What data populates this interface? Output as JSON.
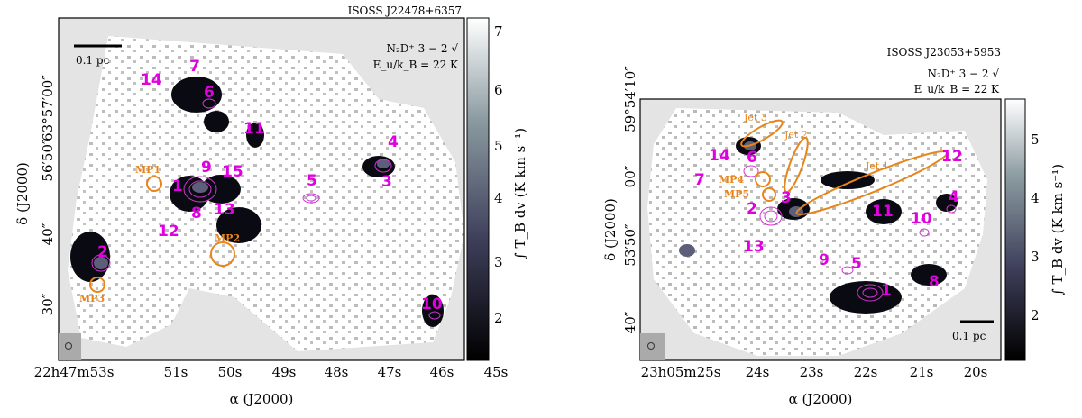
{
  "colors": {
    "map_fill": "#ffffff",
    "outside": "#e4e4e4",
    "emission_dark": "#0a0a12",
    "emission_mid": "#5d5f7a",
    "contour": "#d433d4",
    "source_label": "#e000e0",
    "mp_marker": "#e8851a"
  },
  "left": {
    "title": "ISOSS J22478+6357",
    "line_name": "N₂D⁺ 3 − 2 √",
    "energy": "E_u/k_B = 22 K",
    "scale_bar": "0.1 pc",
    "xlabel": "α (J2000)",
    "ylabel": "δ (J2000)",
    "colorbar_label": "∫ T_B dv  (K km s⁻¹)",
    "xticks": [
      "22h47m53s",
      "51s",
      "50s",
      "49s",
      "48s",
      "47s",
      "46s",
      "45s"
    ],
    "yticks": [
      "63°57′00″",
      "56′50″",
      "40″",
      "30″"
    ],
    "colorbar_ticks": [
      "2",
      "3",
      "4",
      "5",
      "6",
      "7"
    ],
    "sources": [
      "1",
      "2",
      "3",
      "4",
      "5",
      "6",
      "7",
      "8",
      "9",
      "10",
      "11",
      "12",
      "13",
      "14",
      "15"
    ],
    "mp_labels": [
      "MP1",
      "MP2",
      "MP3"
    ]
  },
  "right": {
    "title": "ISOSS J23053+5953",
    "line_name": "N₂D⁺ 3 − 2 √",
    "energy": "E_u/k_B = 22 K",
    "scale_bar": "0.1 pc",
    "xlabel": "α (J2000)",
    "ylabel": "δ (J2000)",
    "colorbar_label": "∫ T_B dv  (K km s⁻¹)",
    "xticks": [
      "23h05m25s",
      "24s",
      "23s",
      "22s",
      "21s",
      "20s"
    ],
    "yticks": [
      "59°54′10″",
      "00″",
      "53′50″",
      "40″"
    ],
    "colorbar_ticks": [
      "2",
      "3",
      "4",
      "5"
    ],
    "sources": [
      "1",
      "2",
      "3",
      "4",
      "5",
      "6",
      "7",
      "8",
      "9",
      "10",
      "11",
      "12",
      "13",
      "14"
    ],
    "mp_labels": [
      "MP4",
      "MP5"
    ],
    "jets": [
      "Jet 1",
      "Jet 2",
      "Jet 3"
    ]
  }
}
